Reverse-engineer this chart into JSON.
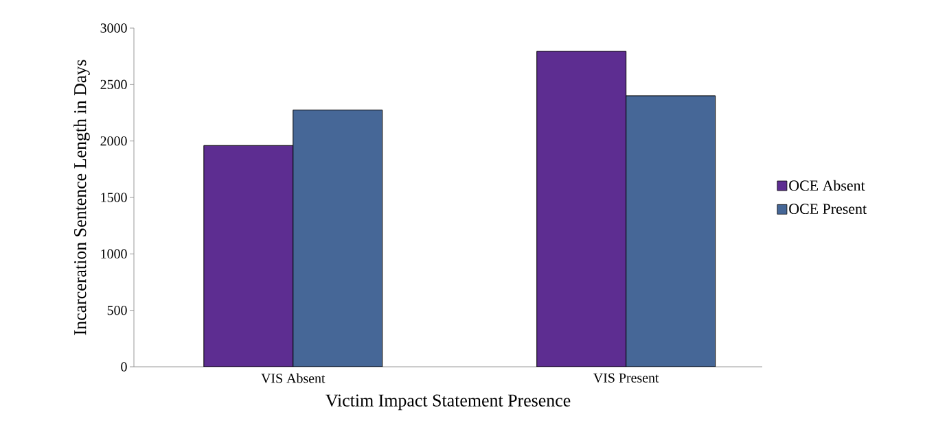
{
  "chart_data": {
    "type": "bar",
    "xlabel": "Victim Impact Statement Presence",
    "ylabel": "Incarceration Sentence Length in Days",
    "categories": [
      "VIS Absent",
      "VIS Present"
    ],
    "series": [
      {
        "name": "OCE Absent",
        "color": "#5d2d91",
        "values": [
          1960,
          2795
        ]
      },
      {
        "name": "OCE Present",
        "color": "#466797",
        "values": [
          2275,
          2400
        ]
      }
    ],
    "ylim": [
      0,
      3000
    ],
    "yticks": [
      0,
      500,
      1000,
      1500,
      2000,
      2500,
      3000
    ],
    "grid": false,
    "legend": "right"
  }
}
